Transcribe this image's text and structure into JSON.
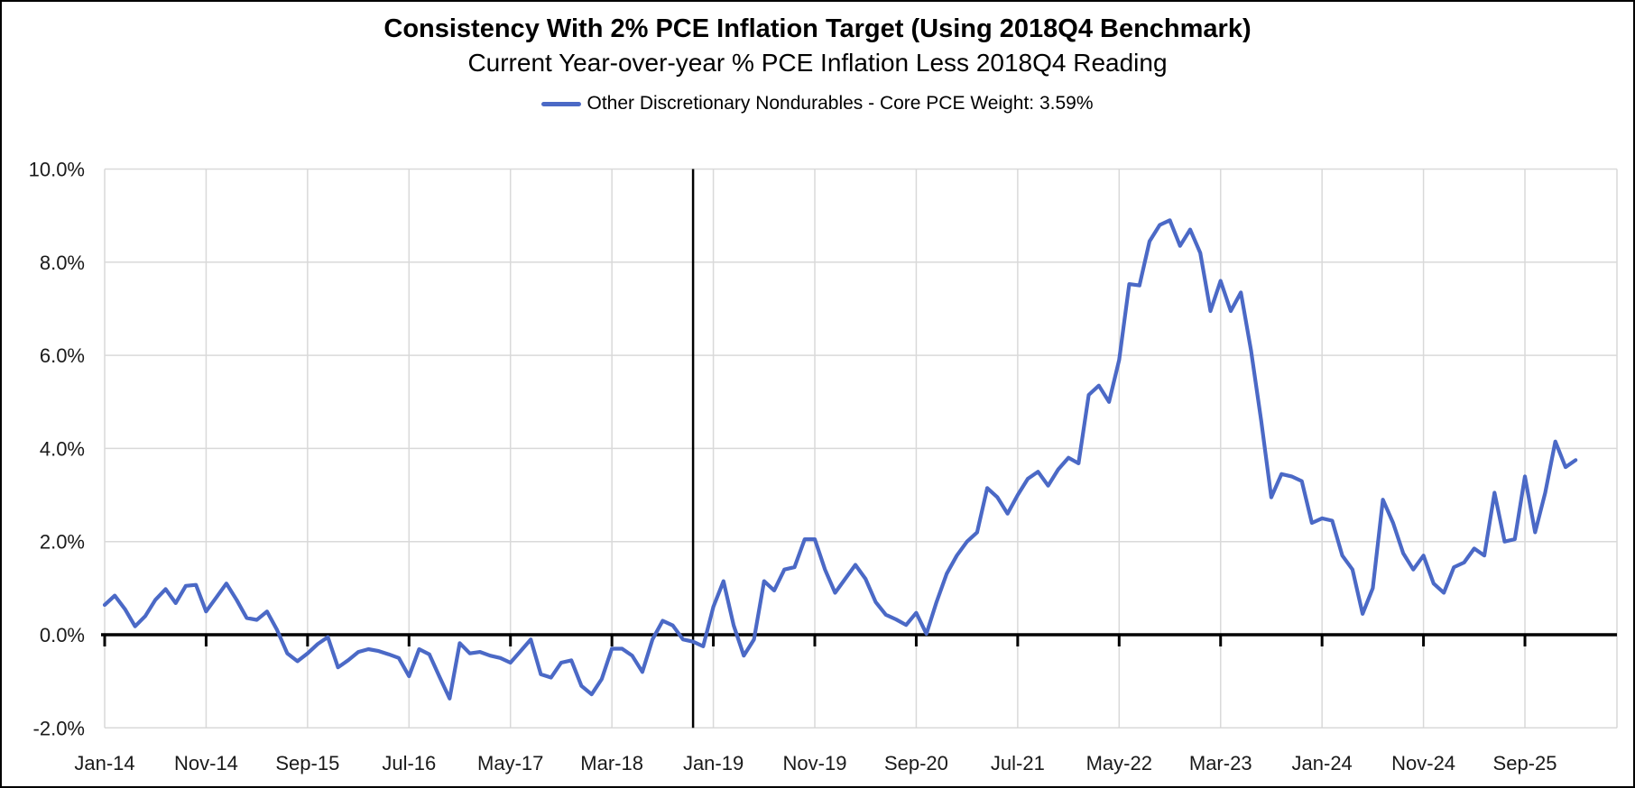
{
  "title": "Consistency With 2% PCE Inflation Target (Using 2018Q4 Benchmark)",
  "subtitle": "Current Year-over-year % PCE Inflation Less 2018Q4 Reading",
  "legend": {
    "label": "Other Discretionary Nondurables - Core PCE Weight: 3.59%",
    "color": "#4b69c6"
  },
  "chart_data": {
    "type": "line",
    "series_name": "Other Discretionary Nondurables - Core PCE Weight: 3.59%",
    "x_start": "Jan-2014",
    "frequency": "monthly",
    "ylim": [
      -2,
      10
    ],
    "grid": true,
    "legend_position": "top-center",
    "line_color": "#4b69c6",
    "grid_color": "#d9d9d9",
    "axis_color": "#000000",
    "benchmark_vline_month_index": 58,
    "y_ticks": [
      {
        "value": 10,
        "label": "10.0%"
      },
      {
        "value": 8,
        "label": "8.0%"
      },
      {
        "value": 6,
        "label": "6.0%"
      },
      {
        "value": 4,
        "label": "4.0%"
      },
      {
        "value": 2,
        "label": "2.0%"
      },
      {
        "value": 0,
        "label": "0.0%"
      },
      {
        "value": -2,
        "label": "-2.0%"
      }
    ],
    "x_ticks": [
      {
        "month_index": 0,
        "label": "Jan-14"
      },
      {
        "month_index": 10,
        "label": "Nov-14"
      },
      {
        "month_index": 20,
        "label": "Sep-15"
      },
      {
        "month_index": 30,
        "label": "Jul-16"
      },
      {
        "month_index": 40,
        "label": "May-17"
      },
      {
        "month_index": 50,
        "label": "Mar-18"
      },
      {
        "month_index": 60,
        "label": "Jan-19"
      },
      {
        "month_index": 70,
        "label": "Nov-19"
      },
      {
        "month_index": 80,
        "label": "Sep-20"
      },
      {
        "month_index": 90,
        "label": "Jul-21"
      },
      {
        "month_index": 100,
        "label": "May-22"
      },
      {
        "month_index": 110,
        "label": "Mar-23"
      },
      {
        "month_index": 120,
        "label": "Jan-24"
      },
      {
        "month_index": 130,
        "label": "Nov-24"
      },
      {
        "month_index": 140,
        "label": "Sep-25"
      }
    ],
    "values": [
      0.64,
      0.84,
      0.55,
      0.18,
      0.4,
      0.75,
      0.98,
      0.68,
      1.05,
      1.07,
      0.5,
      0.8,
      1.1,
      0.75,
      0.36,
      0.32,
      0.5,
      0.1,
      -0.4,
      -0.57,
      -0.4,
      -0.2,
      -0.05,
      -0.7,
      -0.55,
      -0.37,
      -0.31,
      -0.35,
      -0.42,
      -0.5,
      -0.89,
      -0.31,
      -0.42,
      -0.9,
      -1.37,
      -0.18,
      -0.4,
      -0.37,
      -0.45,
      -0.5,
      -0.6,
      -0.35,
      -0.1,
      -0.85,
      -0.92,
      -0.6,
      -0.55,
      -1.1,
      -1.28,
      -0.95,
      -0.3,
      -0.3,
      -0.45,
      -0.8,
      -0.1,
      0.3,
      0.2,
      -0.1,
      -0.15,
      -0.25,
      0.6,
      1.15,
      0.2,
      -0.45,
      -0.1,
      1.15,
      0.95,
      1.4,
      1.45,
      2.05,
      2.05,
      1.4,
      0.9,
      1.2,
      1.5,
      1.2,
      0.7,
      0.43,
      0.33,
      0.21,
      0.47,
      0.02,
      0.7,
      1.31,
      1.7,
      2.0,
      2.2,
      3.15,
      2.95,
      2.6,
      3.0,
      3.35,
      3.5,
      3.2,
      3.55,
      3.8,
      3.68,
      5.15,
      5.35,
      5.0,
      5.9,
      7.53,
      7.5,
      8.45,
      8.8,
      8.9,
      8.35,
      8.7,
      8.2,
      6.95,
      7.6,
      6.95,
      7.35,
      6.1,
      4.6,
      2.95,
      3.45,
      3.4,
      3.3,
      2.4,
      2.5,
      2.45,
      1.7,
      1.4,
      0.45,
      1.0,
      2.9,
      2.4,
      1.75,
      1.4,
      1.7,
      1.1,
      0.9,
      1.45,
      1.55,
      1.85,
      1.7,
      3.05,
      2.0,
      2.05,
      3.4,
      2.2,
      3.05,
      4.15,
      3.6,
      3.75
    ]
  }
}
